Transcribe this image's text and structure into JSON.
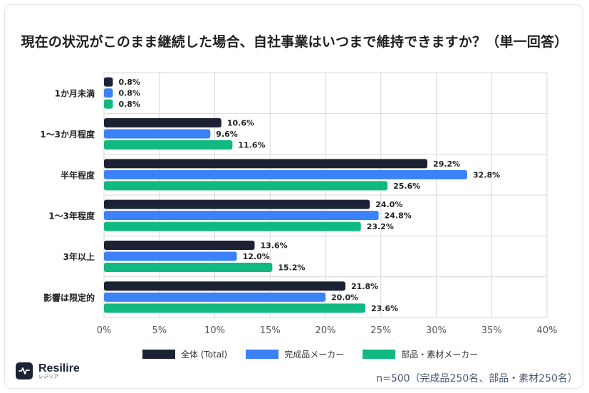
{
  "title": "現在の状況がこのまま継続した場合、自社事業はいつまで維持できますか？（単一回答）",
  "note": "n=500（完成品250名、部品・素材250名）",
  "logo": {
    "name": "Resilire",
    "kana": "レジリア",
    "icon": "waveform-icon"
  },
  "colors": {
    "total": "#1c2233",
    "finished": "#3b82f6",
    "parts": "#10b981"
  },
  "chart_data": {
    "type": "bar",
    "orientation": "horizontal",
    "title": "現在の状況がこのまま継続した場合、自社事業はいつまで維持できますか？（単一回答）",
    "categories": [
      "1か月未満",
      "1〜3か月程度",
      "半年程度",
      "1〜3年程度",
      "3年以上",
      "影響は限定的"
    ],
    "series": [
      {
        "name": "全体 (Total)",
        "color": "#1c2233",
        "values": [
          0.8,
          10.6,
          29.2,
          24.0,
          13.6,
          21.8
        ]
      },
      {
        "name": "完成品メーカー",
        "color": "#3b82f6",
        "values": [
          0.8,
          9.6,
          32.8,
          24.8,
          12.0,
          20.0
        ]
      },
      {
        "name": "部品・素材メーカー",
        "color": "#10b981",
        "values": [
          0.8,
          11.6,
          25.6,
          23.2,
          15.2,
          23.6
        ]
      }
    ],
    "xlim": [
      0,
      40
    ],
    "xticks": [
      0,
      5,
      10,
      15,
      20,
      25,
      30,
      35,
      40
    ],
    "tick_suffix": "%",
    "grid": true,
    "legend_position": "bottom"
  }
}
